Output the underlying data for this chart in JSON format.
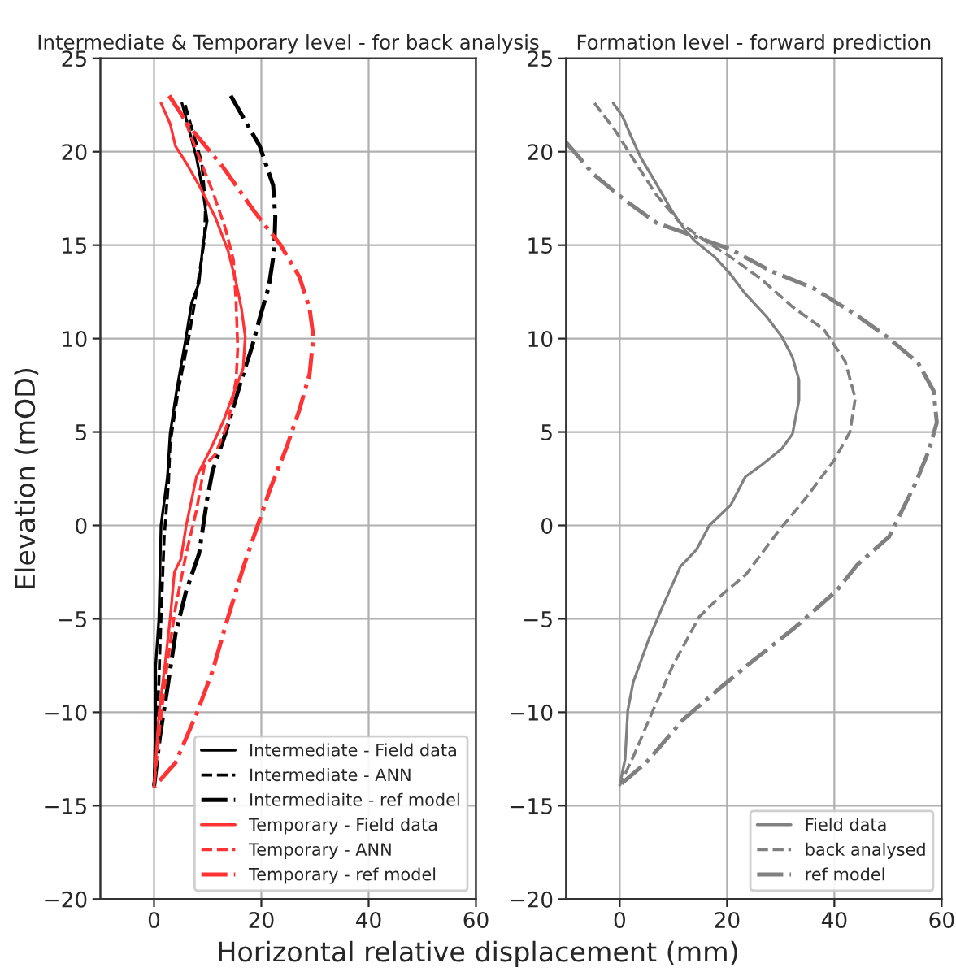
{
  "chart_data": [
    {
      "type": "line",
      "title": "Intermediate & Temporary level - for back analysis",
      "xlabel": "Horizontal relative displacement (mm)",
      "ylabel": "Elevation (mOD)",
      "xlim": [
        -10,
        60
      ],
      "xticks": [
        0,
        20,
        40,
        60
      ],
      "ylim": [
        -20,
        25
      ],
      "yticks": [
        -20,
        -15,
        -10,
        -5,
        0,
        5,
        10,
        15,
        20,
        25
      ],
      "grid": true,
      "legend": "bottom right",
      "marker": "none",
      "series": [
        {
          "name": "Intermediate - Field data",
          "color": "#000000",
          "line_style": "solid",
          "x": [
            5.2,
            7.9,
            9.1,
            9.9,
            9.1,
            8.4,
            7.0,
            5.8,
            4.2,
            3.0,
            2.5,
            2.5,
            1.3,
            0.9,
            0.3,
            0.3,
            0.0
          ],
          "values": [
            22.6,
            19.7,
            17.9,
            16.3,
            15.0,
            13.0,
            11.9,
            9.8,
            7.2,
            4.9,
            2.6,
            2.6,
            0.0,
            -5.0,
            -7.5,
            -10.0,
            -14.0
          ]
        },
        {
          "name": "Intermediate - ANN",
          "color": "#000000",
          "line_style": "dashed",
          "x": [
            5.8,
            8.9,
            9.6,
            9.4,
            8.2,
            6.5,
            4.5,
            3.0,
            2.7,
            1.9,
            1.3,
            0.9,
            0.3,
            0.0
          ],
          "values": [
            22.5,
            19.4,
            17.2,
            15.3,
            13.0,
            10.1,
            7.2,
            4.4,
            2.3,
            -0.6,
            -5.0,
            -8.4,
            -12.2,
            -14.0
          ]
        },
        {
          "name": "Intermediaite - ref model",
          "color": "#000000",
          "line_style": "dashdot",
          "x": [
            14.3,
            19.7,
            22.2,
            22.6,
            22.4,
            21.4,
            19.9,
            18.2,
            16.3,
            13.3,
            10.9,
            9.9,
            8.4,
            6.0,
            4.0,
            2.5,
            1.1,
            0.0
          ],
          "values": [
            23.0,
            20.3,
            18.2,
            16.5,
            14.7,
            12.8,
            11.3,
            9.5,
            7.8,
            4.9,
            2.9,
            1.4,
            -1.5,
            -3.5,
            -5.8,
            -8.7,
            -11.3,
            -14.0
          ]
        },
        {
          "name": "Temporary - Field data",
          "color": "#ff3333",
          "line_style": "solid",
          "x": [
            1.3,
            3.0,
            4.0,
            6.0,
            8.4,
            11.4,
            13.8,
            15.3,
            16.3,
            17.0,
            16.6,
            15.0,
            12.8,
            10.4,
            7.9,
            6.0,
            5.0,
            3.8,
            3.0,
            2.1,
            0.9,
            0.0
          ],
          "values": [
            22.6,
            21.5,
            20.3,
            19.4,
            18.2,
            16.5,
            14.7,
            13.0,
            11.6,
            10.1,
            8.4,
            7.2,
            5.5,
            4.0,
            2.6,
            0.0,
            -1.8,
            -2.5,
            -5.0,
            -7.3,
            -10.1,
            -14.0
          ]
        },
        {
          "name": "Temporary - ANN",
          "color": "#ff3333",
          "line_style": "dashed",
          "x": [
            3.0,
            6.0,
            8.4,
            10.9,
            13.3,
            14.8,
            15.3,
            15.6,
            15.3,
            13.8,
            11.4,
            9.4,
            7.9,
            6.0,
            4.0,
            2.5,
            1.1,
            0.0
          ],
          "values": [
            23.0,
            21.5,
            19.7,
            17.9,
            15.9,
            14.2,
            11.9,
            9.5,
            7.8,
            5.5,
            3.8,
            3.2,
            0.8,
            -1.5,
            -4.4,
            -7.3,
            -10.7,
            -14.0
          ]
        },
        {
          "name": "Temporary - ref model",
          "color": "#ff3333",
          "line_style": "dashdot",
          "x": [
            2.8,
            7.0,
            12.8,
            18.7,
            23.6,
            27.1,
            29.0,
            29.7,
            29.0,
            27.0,
            24.6,
            21.7,
            16.8,
            13.8,
            10.9,
            7.9,
            4.0,
            0.0
          ],
          "values": [
            23.0,
            21.2,
            19.2,
            16.8,
            15.0,
            13.3,
            11.6,
            10.1,
            8.1,
            6.1,
            4.1,
            2.0,
            -2.1,
            -4.9,
            -7.8,
            -10.1,
            -12.7,
            -14.0
          ]
        }
      ]
    },
    {
      "type": "line",
      "title": "Formation level - forward prediction",
      "xlim": [
        -10,
        60
      ],
      "xticks": [
        0,
        20,
        40,
        60
      ],
      "ylim": [
        -20,
        25
      ],
      "yticks": [
        -20,
        -15,
        -10,
        -5,
        0,
        5,
        10,
        15,
        20,
        25
      ],
      "grid": true,
      "legend": "bottom right",
      "marker": "none",
      "series": [
        {
          "name": "Field data",
          "color": "#808080",
          "line_style": "solid",
          "x": [
            -1.2,
            0.5,
            2.0,
            3.9,
            6.8,
            9.8,
            12.2,
            14.1,
            17.6,
            20.5,
            23.4,
            27.3,
            30.2,
            32.2,
            33.4,
            33.4,
            32.2,
            30.2,
            26.3,
            23.4,
            20.7,
            16.7,
            14.3,
            11.3,
            7.9,
            5.4,
            2.5,
            1.5,
            1.0,
            0.0
          ],
          "values": [
            22.6,
            21.9,
            20.9,
            19.7,
            18.3,
            16.8,
            15.8,
            15.2,
            14.4,
            13.5,
            12.4,
            11.2,
            10.1,
            9.0,
            7.8,
            6.7,
            4.9,
            4.1,
            3.2,
            2.6,
            1.1,
            0.0,
            -1.3,
            -2.2,
            -4.4,
            -6.1,
            -8.4,
            -9.9,
            -12.5,
            -13.9
          ]
        },
        {
          "name": "back analysed",
          "color": "#808080",
          "line_style": "dashed",
          "x": [
            -4.7,
            -1.0,
            3.0,
            6.8,
            11.2,
            15.6,
            20.5,
            26.3,
            32.2,
            38.0,
            42.0,
            43.9,
            42.9,
            40.0,
            34.5,
            29.6,
            23.6,
            18.7,
            14.8,
            9.9,
            5.9,
            2.5,
            0.0
          ],
          "values": [
            22.6,
            21.2,
            19.4,
            17.7,
            16.2,
            15.3,
            14.4,
            13.2,
            11.7,
            10.5,
            8.8,
            6.8,
            5.0,
            3.5,
            1.4,
            -0.3,
            -2.6,
            -3.8,
            -4.9,
            -7.5,
            -10.1,
            -12.4,
            -13.9
          ]
        },
        {
          "name": "ref model",
          "color": "#808080",
          "line_style": "dashdot",
          "x": [
            -10.0,
            -4.9,
            1.0,
            6.8,
            12.7,
            20.5,
            28.3,
            36.1,
            43.9,
            49.8,
            55.6,
            58.5,
            59.1,
            57.6,
            55.2,
            50.2,
            44.3,
            40.4,
            32.5,
            24.6,
            18.7,
            11.8,
            4.9,
            0.0
          ],
          "values": [
            20.5,
            18.8,
            17.4,
            16.2,
            15.6,
            14.8,
            13.6,
            12.7,
            11.3,
            10.1,
            8.7,
            7.2,
            5.5,
            4.0,
            2.3,
            -0.6,
            -2.1,
            -3.5,
            -5.5,
            -7.3,
            -8.7,
            -10.4,
            -12.7,
            -13.9
          ]
        }
      ]
    }
  ]
}
